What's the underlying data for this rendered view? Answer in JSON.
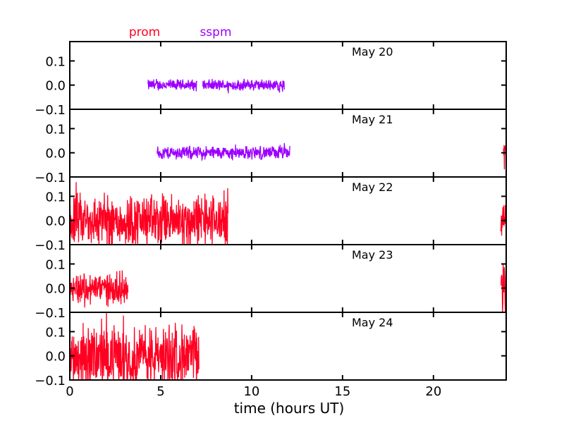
{
  "chart_data": {
    "type": "line",
    "xlabel": "time (hours UT)",
    "xlim": [
      0,
      24
    ],
    "ylim": [
      -0.1,
      0.18
    ],
    "x_ticks": [
      0,
      5,
      10,
      15,
      20
    ],
    "x_tick_labels": [
      "0",
      "5",
      "10",
      "15",
      "20"
    ],
    "y_ticks": [
      -0.1,
      0.0,
      0.1
    ],
    "y_tick_labels": [
      "−0.1",
      "0.0",
      "0.1"
    ],
    "legend": [
      {
        "name": "prom",
        "color": "#ff0022"
      },
      {
        "name": "sspm",
        "color": "#9b00ff"
      }
    ],
    "panels": [
      {
        "label": "May 20",
        "segments": [
          {
            "series": "sspm",
            "x_start": 4.3,
            "x_end": 7.0,
            "amplitude": 0.028
          },
          {
            "series": "sspm",
            "x_start": 7.3,
            "x_end": 11.8,
            "amplitude": 0.028
          }
        ]
      },
      {
        "label": "May 21",
        "segments": [
          {
            "series": "sspm",
            "x_start": 4.8,
            "x_end": 12.1,
            "amplitude": 0.033
          },
          {
            "series": "prom",
            "x_start": 23.85,
            "x_end": 24.0,
            "amplitude": 0.09
          }
        ]
      },
      {
        "label": "May 22",
        "segments": [
          {
            "series": "prom",
            "x_start": 0.0,
            "x_end": 8.7,
            "amplitude": 0.13
          },
          {
            "series": "prom",
            "x_start": 23.7,
            "x_end": 24.0,
            "amplitude": 0.07
          }
        ]
      },
      {
        "label": "May 23",
        "segments": [
          {
            "series": "prom",
            "x_start": 0.0,
            "x_end": 3.2,
            "amplitude": 0.08
          },
          {
            "series": "prom",
            "x_start": 23.7,
            "x_end": 24.0,
            "amplitude": 0.14
          }
        ]
      },
      {
        "label": "May 24",
        "segments": [
          {
            "series": "prom",
            "x_start": 0.0,
            "x_end": 7.1,
            "amplitude": 0.15
          }
        ]
      }
    ]
  }
}
